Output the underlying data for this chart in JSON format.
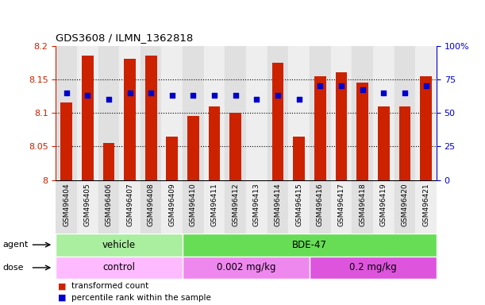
{
  "title": "GDS3608 / ILMN_1362818",
  "samples": [
    "GSM496404",
    "GSM496405",
    "GSM496406",
    "GSM496407",
    "GSM496408",
    "GSM496409",
    "GSM496410",
    "GSM496411",
    "GSM496412",
    "GSM496413",
    "GSM496414",
    "GSM496415",
    "GSM496416",
    "GSM496417",
    "GSM496418",
    "GSM496419",
    "GSM496420",
    "GSM496421"
  ],
  "bar_values": [
    8.115,
    8.185,
    8.055,
    8.18,
    8.185,
    8.065,
    8.095,
    8.11,
    8.1,
    7.99,
    8.175,
    8.065,
    8.155,
    8.16,
    8.145,
    8.11,
    8.11,
    8.155
  ],
  "percentile_values": [
    65,
    63,
    60,
    65,
    65,
    63,
    63,
    63,
    63,
    60,
    63,
    60,
    70,
    70,
    67,
    65,
    65,
    70
  ],
  "bar_color": "#cc2200",
  "dot_color": "#0000cc",
  "ymin": 8.0,
  "ymax": 8.2,
  "y2min": 0,
  "y2max": 100,
  "yticks": [
    8.0,
    8.05,
    8.1,
    8.15,
    8.2
  ],
  "ytick_labels": [
    "8",
    "8.05",
    "8.1",
    "8.15",
    "8.2"
  ],
  "y2ticks": [
    0,
    25,
    50,
    75,
    100
  ],
  "y2ticklabels": [
    "0",
    "25",
    "50",
    "75",
    "100%"
  ],
  "gridlines": [
    8.05,
    8.1,
    8.15
  ],
  "agent_groups": [
    {
      "text": "vehicle",
      "start": 0,
      "end": 5,
      "color": "#aaeea0"
    },
    {
      "text": "BDE-47",
      "start": 6,
      "end": 17,
      "color": "#66dd55"
    }
  ],
  "dose_groups": [
    {
      "text": "control",
      "start": 0,
      "end": 5,
      "color": "#ffbbff"
    },
    {
      "text": "0.002 mg/kg",
      "start": 6,
      "end": 11,
      "color": "#ee88ee"
    },
    {
      "text": "0.2 mg/kg",
      "start": 12,
      "end": 17,
      "color": "#dd55dd"
    }
  ],
  "legend_items": [
    {
      "color": "#cc2200",
      "label": "transformed count"
    },
    {
      "color": "#0000cc",
      "label": "percentile rank within the sample"
    }
  ],
  "col_bg_even": "#e0e0e0",
  "col_bg_odd": "#eeeeee",
  "tick_color_left": "#cc2200",
  "tick_color_right": "#0000cc",
  "agent_label": "agent",
  "dose_label": "dose"
}
